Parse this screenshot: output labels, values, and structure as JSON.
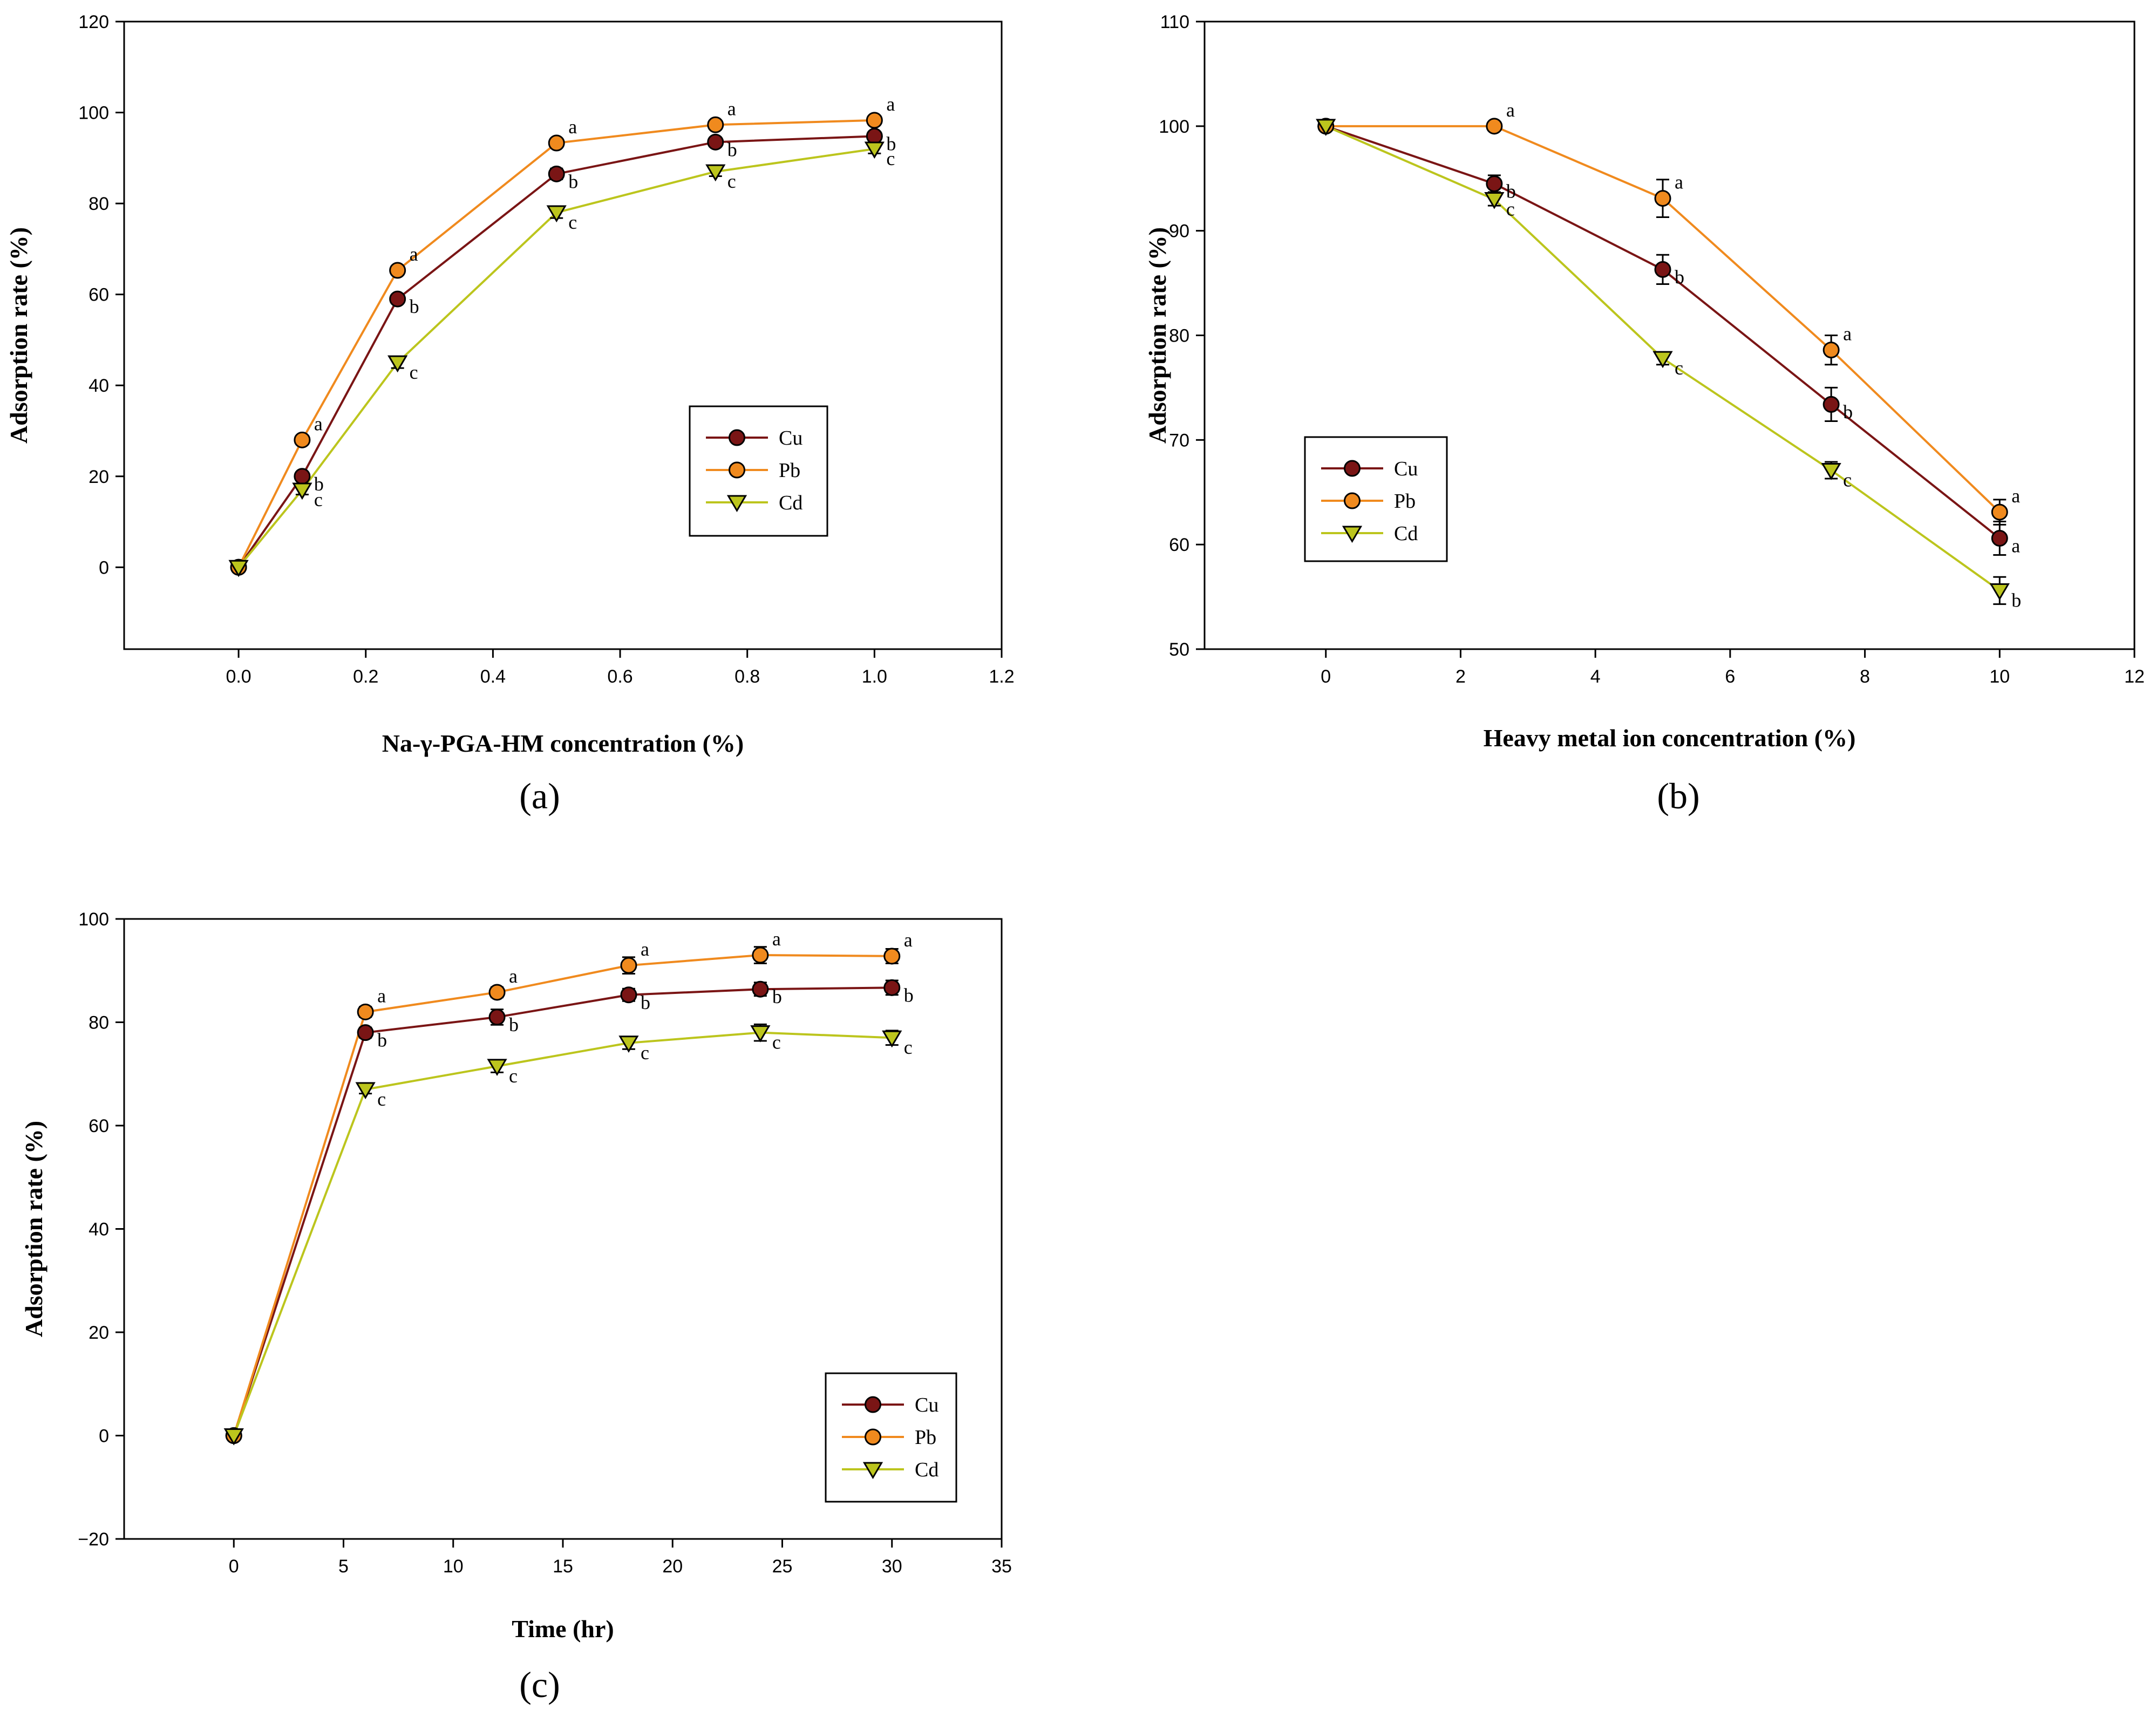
{
  "figure": {
    "panel_labels": [
      "(a)",
      "(b)",
      "(c)"
    ]
  },
  "colors": {
    "Cu": "#7a1515",
    "Pb": "#f08a1e",
    "Cd": "#bcc51d"
  },
  "chart_data": [
    {
      "type": "line",
      "panel": "(a)",
      "xlabel": "Na-γ-PGA-HM concentration (%)",
      "ylabel": "Adsorption rate (%)",
      "xlim": [
        -0.18,
        1.2
      ],
      "ylim": [
        -18,
        120
      ],
      "xticks": [
        0.0,
        0.2,
        0.4,
        0.6,
        0.8,
        1.0,
        1.2
      ],
      "xtick_labels": [
        "0.0",
        "0.2",
        "0.4",
        "0.6",
        "0.8",
        "1.0",
        "1.2"
      ],
      "yticks": [
        0,
        20,
        40,
        60,
        80,
        100,
        120
      ],
      "ytick_labels": [
        "0",
        "20",
        "40",
        "60",
        "80",
        "100",
        "120"
      ],
      "legend": {
        "placement": "center-right",
        "entries": [
          "Cu",
          "Pb",
          "Cd"
        ]
      },
      "grid": false,
      "series": [
        {
          "name": "Cu",
          "marker": "circle",
          "x": [
            0,
            0.1,
            0.25,
            0.5,
            0.75,
            1.0
          ],
          "y": [
            0,
            20,
            59,
            86.5,
            93.5,
            94.8
          ],
          "err": [
            0,
            1,
            1,
            1.2,
            1,
            1
          ],
          "labels": [
            "",
            "b",
            "b",
            "b",
            "b",
            "b"
          ]
        },
        {
          "name": "Pb",
          "marker": "circle",
          "x": [
            0,
            0.1,
            0.25,
            0.5,
            0.75,
            1.0
          ],
          "y": [
            0,
            28,
            65.3,
            93.3,
            97.3,
            98.3
          ],
          "err": [
            0,
            1,
            1,
            1,
            1,
            1
          ],
          "labels": [
            "",
            "a",
            "a",
            "a",
            "a",
            "a"
          ]
        },
        {
          "name": "Cd",
          "marker": "triangle-down",
          "x": [
            0,
            0.1,
            0.25,
            0.5,
            0.75,
            1.0
          ],
          "y": [
            0,
            17,
            45,
            78,
            87,
            92
          ],
          "err": [
            0,
            1,
            1.2,
            1.2,
            1,
            1
          ],
          "labels": [
            "",
            "c",
            "c",
            "c",
            "c",
            "c"
          ]
        }
      ]
    },
    {
      "type": "line",
      "panel": "(b)",
      "xlabel": "Heavy metal ion concentration (%)",
      "ylabel": "Adsorption rate (%)",
      "xlim": [
        -1.8,
        12
      ],
      "ylim": [
        50,
        110
      ],
      "xticks": [
        0,
        2,
        4,
        6,
        8,
        10,
        12
      ],
      "xtick_labels": [
        "0",
        "2",
        "4",
        "6",
        "8",
        "10",
        "12"
      ],
      "yticks": [
        50,
        60,
        70,
        80,
        90,
        100,
        110
      ],
      "ytick_labels": [
        "50",
        "60",
        "70",
        "80",
        "90",
        "100",
        "110"
      ],
      "legend": {
        "placement": "center-left",
        "entries": [
          "Cu",
          "Pb",
          "Cd"
        ]
      },
      "grid": false,
      "series": [
        {
          "name": "Cu",
          "marker": "circle",
          "x": [
            0,
            2.5,
            5,
            7.5,
            10
          ],
          "y": [
            100,
            94.5,
            86.3,
            73.4,
            60.6
          ],
          "err": [
            0,
            0.8,
            1.4,
            1.6,
            1.6
          ],
          "labels": [
            "",
            "b",
            "b",
            "b",
            "a"
          ]
        },
        {
          "name": "Pb",
          "marker": "circle",
          "x": [
            0,
            2.5,
            5,
            7.5,
            10
          ],
          "y": [
            100,
            100,
            93.1,
            78.6,
            63.1
          ],
          "err": [
            0,
            0,
            1.8,
            1.4,
            1.2
          ],
          "labels": [
            "",
            "a",
            "a",
            "a",
            "a"
          ]
        },
        {
          "name": "Cd",
          "marker": "triangle-down",
          "x": [
            0,
            2.5,
            5,
            7.5,
            10
          ],
          "y": [
            100,
            93,
            77.8,
            67.1,
            55.6
          ],
          "err": [
            0,
            0.6,
            0.6,
            0.8,
            1.3
          ],
          "labels": [
            "",
            "c",
            "c",
            "c",
            "b"
          ]
        }
      ]
    },
    {
      "type": "line",
      "panel": "(c)",
      "xlabel": "Time (hr)",
      "ylabel": "Adsorption rate (%)",
      "xlim": [
        -5,
        35
      ],
      "ylim": [
        -20,
        100
      ],
      "xticks": [
        0,
        5,
        10,
        15,
        20,
        25,
        30,
        35
      ],
      "xtick_labels": [
        "0",
        "5",
        "10",
        "15",
        "20",
        "25",
        "30",
        "35"
      ],
      "yticks": [
        -20,
        0,
        20,
        40,
        60,
        80,
        100
      ],
      "ytick_labels": [
        "−20",
        "0",
        "20",
        "40",
        "60",
        "80",
        "100"
      ],
      "legend": {
        "placement": "lower-right",
        "entries": [
          "Cu",
          "Pb",
          "Cd"
        ]
      },
      "grid": false,
      "series": [
        {
          "name": "Cu",
          "marker": "circle",
          "x": [
            0,
            6,
            12,
            18,
            24,
            30
          ],
          "y": [
            0,
            78,
            81,
            85.3,
            86.4,
            86.7
          ],
          "err": [
            0,
            1,
            1.5,
            1.2,
            1.3,
            1.4
          ],
          "labels": [
            "",
            "b",
            "b",
            "b",
            "b",
            "b"
          ]
        },
        {
          "name": "Pb",
          "marker": "circle",
          "x": [
            0,
            6,
            12,
            18,
            24,
            30
          ],
          "y": [
            0,
            82,
            85.8,
            91,
            93,
            92.8
          ],
          "err": [
            0,
            1,
            1,
            1.6,
            1.6,
            1.4
          ],
          "labels": [
            "",
            "a",
            "a",
            "a",
            "a",
            "a"
          ]
        },
        {
          "name": "Cd",
          "marker": "triangle-down",
          "x": [
            0,
            6,
            12,
            18,
            24,
            30
          ],
          "y": [
            0,
            67,
            71.5,
            76,
            78,
            77
          ],
          "err": [
            0,
            0.8,
            1.2,
            1.2,
            1.6,
            1.4
          ],
          "labels": [
            "",
            "c",
            "c",
            "c",
            "c",
            "c"
          ]
        }
      ]
    }
  ]
}
